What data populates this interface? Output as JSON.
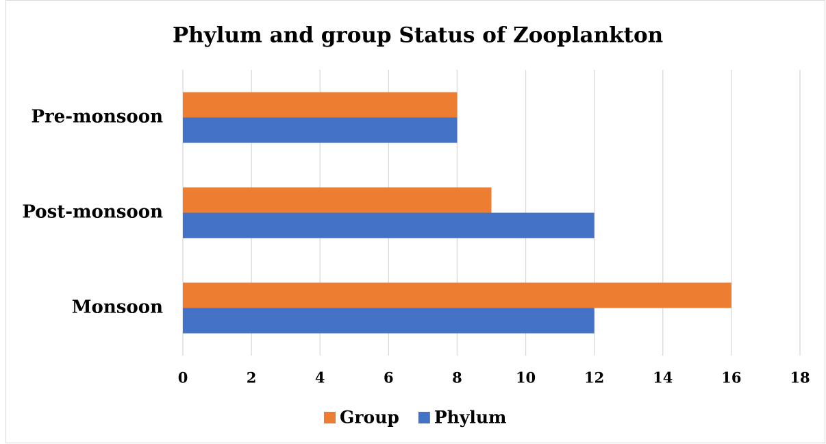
{
  "chart_data": {
    "type": "bar",
    "orientation": "horizontal",
    "title": "Phylum and group Status of Zooplankton",
    "categories": [
      "Monsoon",
      "Post-monsoon",
      "Pre-monsoon"
    ],
    "series": [
      {
        "name": "Group",
        "color": "#ED7D31",
        "values": [
          16,
          9,
          8
        ]
      },
      {
        "name": "Phylum",
        "color": "#4472C4",
        "values": [
          12,
          12,
          8
        ]
      }
    ],
    "xlim": [
      0,
      18
    ],
    "xticks": [
      0,
      2,
      4,
      6,
      8,
      10,
      12,
      14,
      16,
      18
    ],
    "grid": true,
    "legend": "bottom"
  }
}
